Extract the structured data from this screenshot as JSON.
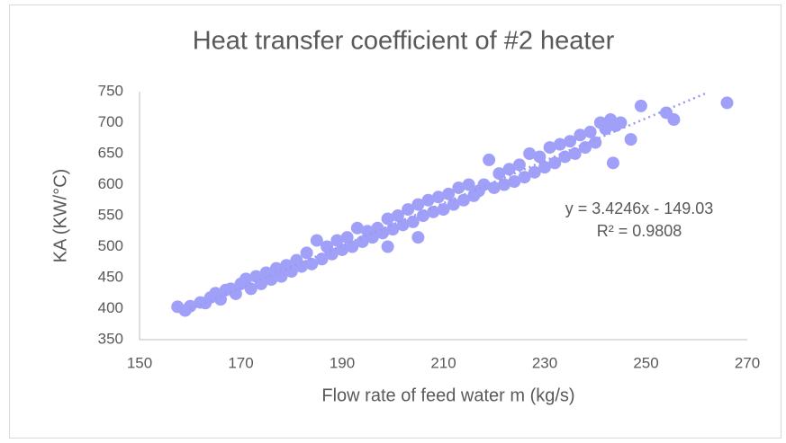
{
  "chart_data": {
    "type": "scatter",
    "title": "Heat transfer coefficient of #2 heater",
    "x_label": "Flow rate of feed water m (kg/s)",
    "y_label": "KA (KW/°C)",
    "annotations": [
      "y = 3.4246x - 149.03",
      "R² = 0.9808"
    ],
    "xlim": [
      150,
      270
    ],
    "xticks": [
      150,
      170,
      190,
      210,
      230,
      250,
      270
    ],
    "ylim": [
      350,
      750
    ],
    "yticks": [
      350,
      400,
      450,
      500,
      550,
      600,
      650,
      700,
      750
    ],
    "grid": false,
    "trendline": {
      "x": [
        160,
        262
      ],
      "y": [
        399,
        748
      ],
      "color": "#9999f5"
    },
    "series": [
      {
        "name": "KA",
        "color": "#a0a0f8",
        "x": [
          157.5,
          159,
          160,
          162,
          163,
          164,
          165,
          166,
          167,
          168,
          169,
          170,
          171,
          172,
          173,
          174,
          175,
          176,
          177,
          178,
          179,
          180,
          181,
          182,
          183,
          184,
          185,
          186,
          187,
          188,
          189,
          190,
          191,
          192,
          193,
          194,
          195,
          196,
          197,
          198,
          199,
          200,
          201,
          202,
          203,
          204,
          205,
          206,
          207,
          208,
          209,
          210,
          211,
          212,
          213,
          214,
          215,
          216,
          217,
          218,
          219,
          220,
          221,
          222,
          223,
          224,
          225,
          226,
          227,
          228,
          229,
          230,
          231,
          232,
          233,
          234,
          235,
          236,
          237,
          238,
          239,
          240,
          241,
          242,
          243,
          244,
          245,
          243.5,
          247,
          249,
          254,
          255.5,
          266,
          205,
          199,
          186
        ],
        "y": [
          403,
          397,
          404,
          410,
          409,
          418,
          425,
          415,
          430,
          432,
          424,
          440,
          448,
          432,
          452,
          440,
          458,
          447,
          465,
          452,
          470,
          460,
          478,
          468,
          490,
          472,
          510,
          480,
          500,
          488,
          510,
          495,
          515,
          500,
          530,
          508,
          525,
          515,
          530,
          522,
          545,
          528,
          550,
          535,
          560,
          540,
          568,
          550,
          575,
          556,
          580,
          560,
          585,
          568,
          595,
          575,
          600,
          582,
          590,
          600,
          640,
          595,
          618,
          600,
          625,
          605,
          632,
          612,
          650,
          620,
          645,
          628,
          660,
          635,
          665,
          645,
          670,
          650,
          680,
          660,
          685,
          668,
          700,
          690,
          705,
          695,
          700,
          635,
          673,
          727,
          716,
          705,
          732,
          515,
          500,
          480
        ]
      }
    ]
  }
}
